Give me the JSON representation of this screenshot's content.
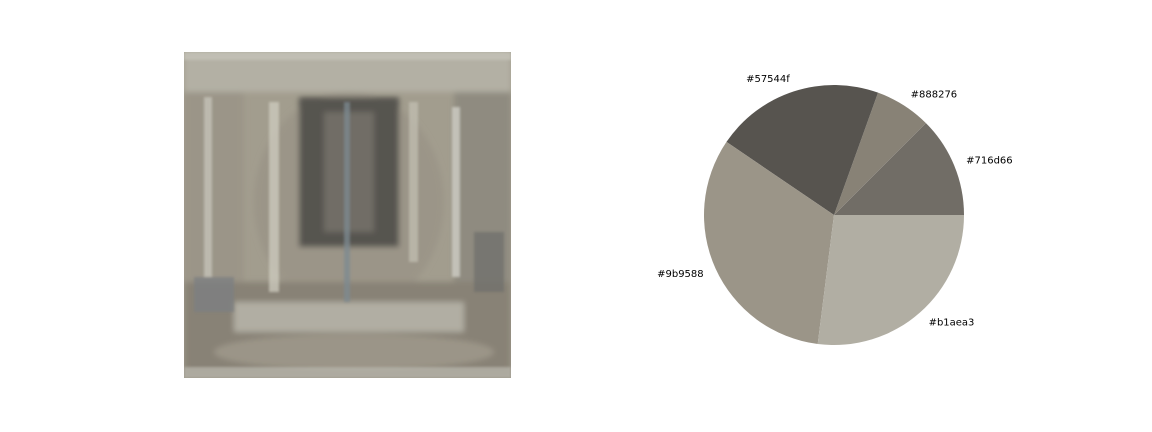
{
  "chart_data": {
    "type": "pie",
    "title": "",
    "slices": [
      {
        "label": "#716d66",
        "color": "#716d66",
        "value": 0.125
      },
      {
        "label": "#888276",
        "color": "#888276",
        "value": 0.07
      },
      {
        "label": "#57544f",
        "color": "#57544f",
        "value": 0.21
      },
      {
        "label": "#9b9588",
        "color": "#9b9588",
        "value": 0.325
      },
      {
        "label": "#b1aea3",
        "color": "#b1aea3",
        "value": 0.27
      }
    ]
  },
  "image": {
    "palette": [
      "#b1aea3",
      "#9b9588",
      "#888276",
      "#716d66",
      "#57544f"
    ]
  }
}
